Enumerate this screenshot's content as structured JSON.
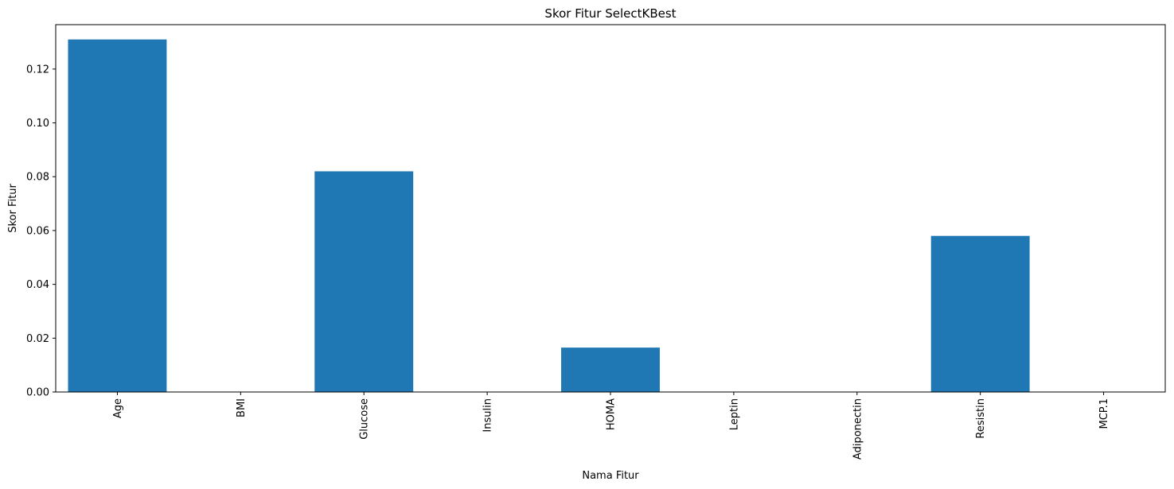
{
  "chart_data": {
    "type": "bar",
    "title": "Skor Fitur SelectKBest",
    "xlabel": "Nama Fitur",
    "ylabel": "Skor Fitur",
    "categories": [
      "Age",
      "BMI",
      "Glucose",
      "Insulin",
      "HOMA",
      "Leptin",
      "Adiponectin",
      "Resistin",
      "MCP.1"
    ],
    "values": [
      0.131,
      0.0,
      0.082,
      0.0,
      0.0165,
      0.0,
      0.0,
      0.058,
      0.0
    ],
    "ylim": [
      0,
      0.1365
    ],
    "yticks": [
      0.0,
      0.02,
      0.04,
      0.06,
      0.08,
      0.1,
      0.12
    ],
    "ytick_labels": [
      "0.00",
      "0.02",
      "0.04",
      "0.06",
      "0.08",
      "0.10",
      "0.12"
    ],
    "bar_color": "#1f77b4",
    "grid": false,
    "legend": "none"
  }
}
